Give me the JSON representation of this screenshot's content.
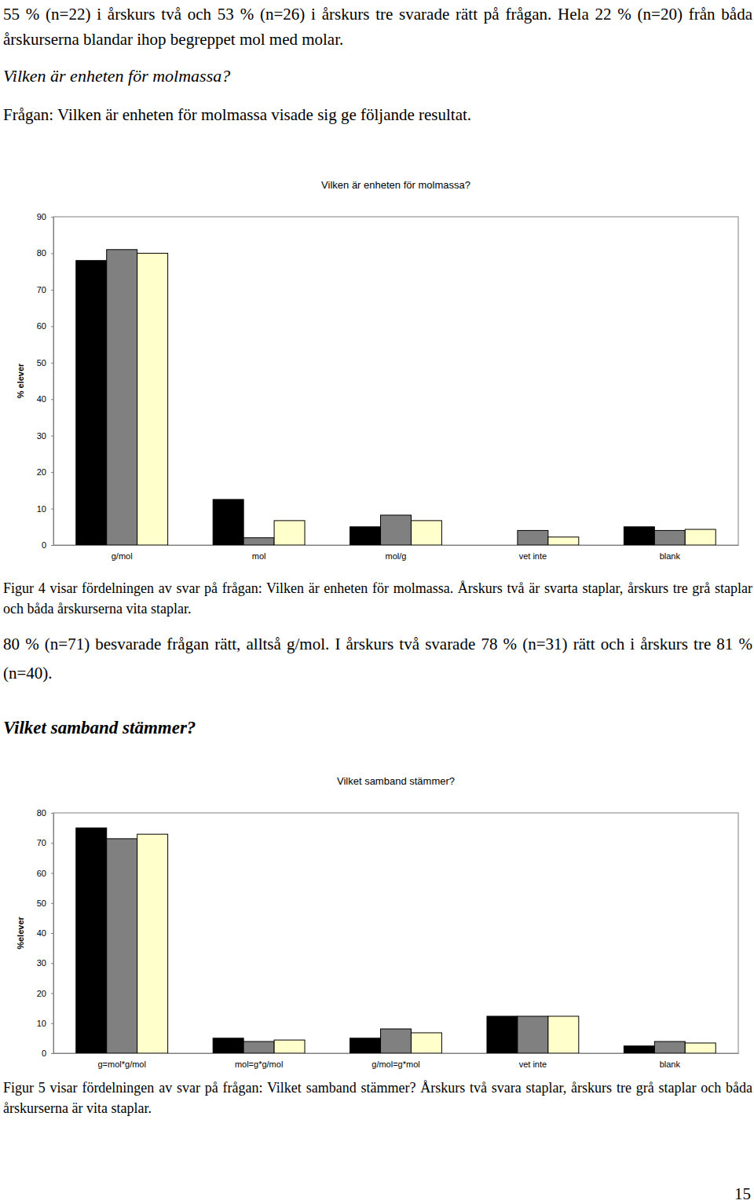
{
  "document": {
    "intro": "55 % (n=22) i årskurs två och 53 % (n=26) i årskurs tre svarade rätt på frågan. Hela 22 % (n=20) från båda årskurserna blandar ihop begreppet mol med molar.",
    "heading_1": "Vilken är enheten för molmassa?",
    "question_1": "Frågan: Vilken är enheten för molmassa visade sig ge följande resultat.",
    "caption_4": "Figur 4 visar fördelningen av svar på frågan: Vilken är enheten för molmassa. Årskurs två är svarta staplar, årskurs tre grå staplar och båda årskurserna vita staplar.",
    "result_4": "80 % (n=71) besvarade frågan rätt, alltså g/mol. I årskurs två svarade 78 % (n=31) rätt och i årskurs tre 81 % (n=40).",
    "heading_2": "Vilket samband stämmer?",
    "caption_5": "Figur 5 visar fördelningen av svar på frågan: Vilket samband stämmer? Årskurs två svara staplar, årskurs tre grå staplar och båda årskurserna är vita staplar.",
    "page_number": 15
  },
  "chart_data": [
    {
      "type": "bar",
      "title": "Vilken är enheten för molmassa?",
      "y_label": "% elever",
      "categories": [
        "g/mol",
        "mol",
        "mol/g",
        "vet inte",
        "blank"
      ],
      "series": [
        {
          "color": "#000000",
          "values": [
            78,
            12.5,
            5,
            0,
            5
          ]
        },
        {
          "color": "#808080",
          "values": [
            81,
            2,
            8.2,
            4,
            4
          ]
        },
        {
          "color": "#ffffcc",
          "values": [
            80,
            6.7,
            6.7,
            2.2,
            4.3
          ]
        }
      ],
      "ylim": [
        0,
        90
      ],
      "yticks": [
        0,
        10,
        20,
        30,
        40,
        50,
        60,
        70,
        80,
        90
      ],
      "grid": false
    },
    {
      "type": "bar",
      "title": "Vilket samband stämmer?",
      "y_label": "%elever",
      "categories": [
        "g=mol*g/mol",
        "mol=g*g/mol",
        "g/mol=g*mol",
        "vet inte",
        "blank"
      ],
      "series": [
        {
          "color": "#000000",
          "values": [
            75,
            5,
            5,
            12.3,
            2.4
          ]
        },
        {
          "color": "#808080",
          "values": [
            71.4,
            3.9,
            8.1,
            12.3,
            3.9
          ]
        },
        {
          "color": "#ffffcc",
          "values": [
            72.9,
            4.4,
            6.8,
            12.3,
            3.4
          ]
        }
      ],
      "ylim": [
        0,
        80
      ],
      "yticks": [
        0,
        10,
        20,
        30,
        40,
        50,
        60,
        70,
        80
      ],
      "grid": false
    }
  ]
}
